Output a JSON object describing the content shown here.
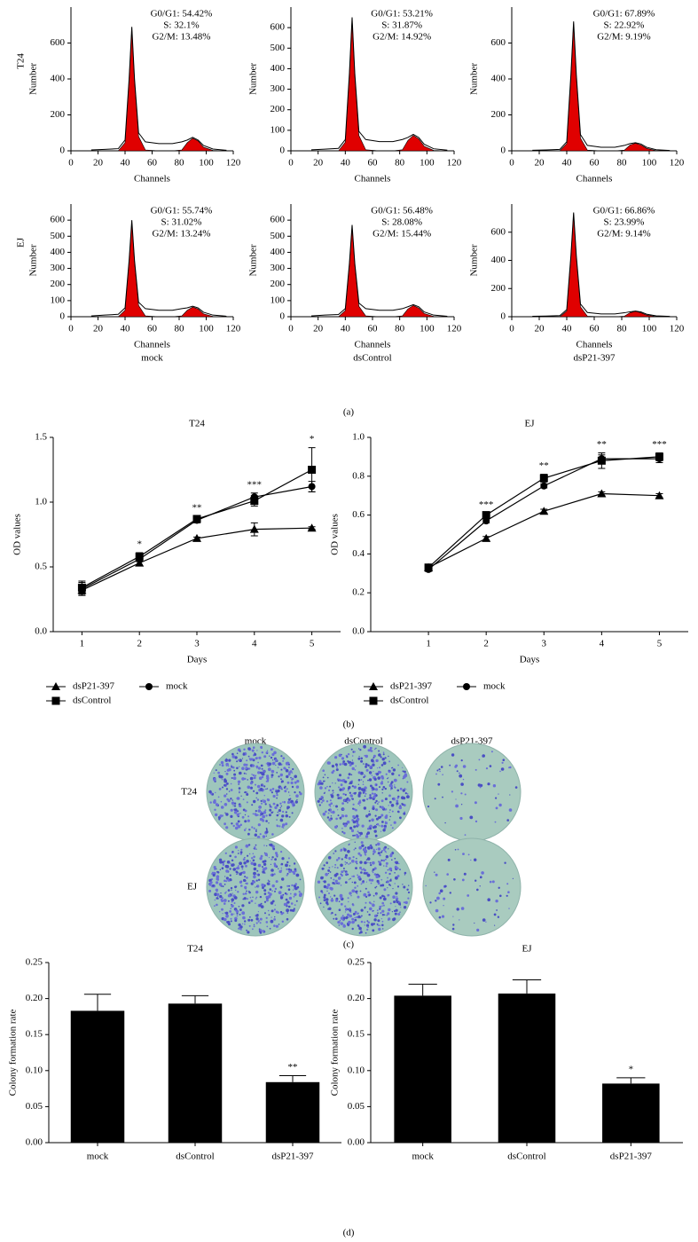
{
  "panel_labels": [
    "(a)",
    "(b)",
    "(c)",
    "(d)"
  ],
  "colony_plates": {
    "columns": [
      "mock",
      "dsControl",
      "dsP21-397"
    ],
    "rows": [
      "T24",
      "EJ"
    ]
  },
  "chart_data": [
    {
      "type": "area",
      "row_label": "T24",
      "y_label": "Number",
      "x_label": "Channels",
      "annotations": [
        "G0/G1: 54.42%",
        "S: 32.1%",
        "G2/M: 13.48%"
      ],
      "x": [
        15,
        25,
        35,
        40,
        43,
        45,
        47,
        50,
        55,
        65,
        75,
        82,
        86,
        90,
        94,
        98,
        105,
        115
      ],
      "series": [
        {
          "color": "#000000",
          "values": [
            5,
            8,
            12,
            60,
            400,
            690,
            400,
            100,
            50,
            40,
            40,
            50,
            60,
            75,
            60,
            30,
            10,
            3
          ]
        },
        {
          "color": "#e00000",
          "values": [
            0,
            0,
            0,
            45,
            390,
            680,
            390,
            80,
            5,
            0,
            0,
            5,
            45,
            70,
            55,
            20,
            2,
            0
          ]
        }
      ],
      "xlim": [
        0,
        120
      ],
      "xticks": [
        0,
        20,
        40,
        60,
        80,
        100,
        120
      ],
      "ylim": [
        0,
        800
      ],
      "yticks": [
        0,
        200,
        400,
        600
      ]
    },
    {
      "type": "area",
      "y_label": "Number",
      "x_label": "Channels",
      "annotations": [
        "G0/G1: 53.21%",
        "S: 31.87%",
        "G2/M: 14.92%"
      ],
      "x": [
        15,
        25,
        35,
        40,
        43,
        45,
        47,
        50,
        55,
        65,
        75,
        82,
        86,
        90,
        94,
        98,
        105,
        115
      ],
      "series": [
        {
          "color": "#000000",
          "values": [
            5,
            8,
            12,
            55,
            375,
            650,
            375,
            95,
            55,
            45,
            45,
            55,
            65,
            80,
            65,
            32,
            10,
            3
          ]
        },
        {
          "color": "#e00000",
          "values": [
            0,
            0,
            0,
            42,
            365,
            640,
            365,
            75,
            5,
            0,
            0,
            5,
            50,
            75,
            58,
            22,
            2,
            0
          ]
        }
      ],
      "xlim": [
        0,
        120
      ],
      "xticks": [
        0,
        20,
        40,
        60,
        80,
        100,
        120
      ],
      "ylim": [
        0,
        700
      ],
      "yticks": [
        0,
        100,
        200,
        300,
        400,
        500,
        600
      ]
    },
    {
      "type": "area",
      "y_label": "Number",
      "x_label": "Channels",
      "annotations": [
        "G0/G1: 67.89%",
        "S: 22.92%",
        "G2/M: 9.19%"
      ],
      "x": [
        15,
        25,
        35,
        40,
        43,
        45,
        47,
        50,
        55,
        65,
        75,
        82,
        86,
        90,
        94,
        98,
        105,
        115
      ],
      "series": [
        {
          "color": "#000000",
          "values": [
            3,
            5,
            8,
            50,
            420,
            720,
            420,
            90,
            30,
            20,
            20,
            30,
            40,
            45,
            38,
            20,
            6,
            2
          ]
        },
        {
          "color": "#e00000",
          "values": [
            0,
            0,
            0,
            40,
            410,
            710,
            410,
            70,
            4,
            0,
            0,
            4,
            32,
            42,
            32,
            14,
            1,
            0
          ]
        }
      ],
      "xlim": [
        0,
        120
      ],
      "xticks": [
        0,
        20,
        40,
        60,
        80,
        100,
        120
      ],
      "ylim": [
        0,
        800
      ],
      "yticks": [
        0,
        200,
        400,
        600
      ]
    },
    {
      "type": "area",
      "row_label": "EJ",
      "y_label": "Number",
      "x_label": "Channels",
      "caption": "mock",
      "annotations": [
        "G0/G1: 55.74%",
        "S: 31.02%",
        "G2/M: 13.24%"
      ],
      "x": [
        15,
        25,
        35,
        40,
        43,
        45,
        47,
        50,
        55,
        65,
        75,
        82,
        86,
        90,
        94,
        98,
        105,
        115
      ],
      "series": [
        {
          "color": "#000000",
          "values": [
            5,
            10,
            15,
            55,
            350,
            600,
            350,
            90,
            50,
            40,
            40,
            50,
            55,
            65,
            55,
            28,
            10,
            3
          ]
        },
        {
          "color": "#e00000",
          "values": [
            0,
            0,
            0,
            40,
            340,
            590,
            340,
            70,
            5,
            0,
            0,
            5,
            40,
            60,
            48,
            18,
            2,
            0
          ]
        }
      ],
      "xlim": [
        0,
        120
      ],
      "xticks": [
        0,
        20,
        40,
        60,
        80,
        100,
        120
      ],
      "ylim": [
        0,
        700
      ],
      "yticks": [
        0,
        100,
        200,
        300,
        400,
        500,
        600
      ]
    },
    {
      "type": "area",
      "y_label": "Number",
      "x_label": "Channels",
      "caption": "dsControl",
      "annotations": [
        "G0/G1: 56.48%",
        "S: 28.08%",
        "G2/M: 15.44%"
      ],
      "x": [
        15,
        25,
        35,
        40,
        43,
        45,
        47,
        50,
        55,
        65,
        75,
        82,
        86,
        90,
        94,
        98,
        105,
        115
      ],
      "series": [
        {
          "color": "#000000",
          "values": [
            5,
            10,
            14,
            50,
            330,
            570,
            330,
            85,
            50,
            40,
            40,
            50,
            62,
            75,
            62,
            30,
            10,
            3
          ]
        },
        {
          "color": "#e00000",
          "values": [
            0,
            0,
            0,
            38,
            320,
            560,
            320,
            65,
            5,
            0,
            0,
            5,
            48,
            70,
            54,
            20,
            2,
            0
          ]
        }
      ],
      "xlim": [
        0,
        120
      ],
      "xticks": [
        0,
        20,
        40,
        60,
        80,
        100,
        120
      ],
      "ylim": [
        0,
        700
      ],
      "yticks": [
        0,
        100,
        200,
        300,
        400,
        500,
        600
      ]
    },
    {
      "type": "area",
      "y_label": "Number",
      "x_label": "Channels",
      "caption": "dsP21-397",
      "annotations": [
        "G0/G1: 66.86%",
        "S: 23.99%",
        "G2/M: 9.14%"
      ],
      "x": [
        15,
        25,
        35,
        40,
        43,
        45,
        47,
        50,
        55,
        65,
        75,
        82,
        86,
        90,
        94,
        98,
        105,
        115
      ],
      "series": [
        {
          "color": "#000000",
          "values": [
            3,
            5,
            8,
            50,
            430,
            740,
            430,
            90,
            30,
            20,
            20,
            28,
            35,
            40,
            34,
            18,
            6,
            2
          ]
        },
        {
          "color": "#e00000",
          "values": [
            0,
            0,
            0,
            40,
            420,
            730,
            420,
            70,
            4,
            0,
            0,
            4,
            28,
            38,
            28,
            12,
            1,
            0
          ]
        }
      ],
      "xlim": [
        0,
        120
      ],
      "xticks": [
        0,
        20,
        40,
        60,
        80,
        100,
        120
      ],
      "ylim": [
        0,
        800
      ],
      "yticks": [
        0,
        200,
        400,
        600
      ]
    },
    {
      "type": "line",
      "title": "T24",
      "x_label": "Days",
      "y_label": "OD values",
      "x": [
        1,
        2,
        3,
        4,
        5
      ],
      "series": [
        {
          "name": "dsP21-397",
          "marker": "triangle",
          "color": "#000000",
          "values": [
            0.32,
            0.53,
            0.72,
            0.79,
            0.8
          ],
          "errors": [
            0.04,
            0.02,
            0.01,
            0.05,
            0.01
          ]
        },
        {
          "name": "dsControl",
          "marker": "square",
          "color": "#000000",
          "values": [
            0.34,
            0.58,
            0.87,
            1.01,
            1.25
          ],
          "errors": [
            0.05,
            0.03,
            0.02,
            0.04,
            0.17
          ]
        },
        {
          "name": "mock",
          "marker": "circle",
          "color": "#000000",
          "values": [
            0.33,
            0.56,
            0.86,
            1.04,
            1.12
          ],
          "errors": [
            0.05,
            0.02,
            0.02,
            0.03,
            0.04
          ]
        }
      ],
      "annotations": [
        null,
        "*",
        "**",
        "***",
        "*"
      ],
      "xlim": [
        0.5,
        5.5
      ],
      "xticks": [
        1,
        2,
        3,
        4,
        5
      ],
      "ylim": [
        0,
        1.5
      ],
      "yticks": [
        {
          "value": 0,
          "label": "0.0"
        },
        {
          "value": 0.5,
          "label": "0.5"
        },
        {
          "value": 1,
          "label": "1.0"
        },
        {
          "value": 1.5,
          "label": "1.5"
        }
      ]
    },
    {
      "type": "line",
      "title": "EJ",
      "x_label": "Days",
      "y_label": "OD values",
      "x": [
        1,
        2,
        3,
        4,
        5
      ],
      "series": [
        {
          "name": "dsP21-397",
          "marker": "triangle",
          "color": "#000000",
          "values": [
            0.33,
            0.48,
            0.62,
            0.71,
            0.7
          ],
          "errors": [
            0.01,
            0.01,
            0.01,
            0.01,
            0.01
          ]
        },
        {
          "name": "dsControl",
          "marker": "square",
          "color": "#000000",
          "values": [
            0.33,
            0.6,
            0.79,
            0.88,
            0.9
          ],
          "errors": [
            0.01,
            0.01,
            0.02,
            0.04,
            0.02
          ]
        },
        {
          "name": "mock",
          "marker": "circle",
          "color": "#000000",
          "values": [
            0.32,
            0.57,
            0.75,
            0.89,
            0.89
          ],
          "errors": [
            0.01,
            0.01,
            0.01,
            0.02,
            0.02
          ]
        }
      ],
      "annotations": [
        null,
        "***",
        "**",
        "**",
        "***"
      ],
      "xlim": [
        0,
        5.5
      ],
      "xticks": [
        1,
        2,
        3,
        4,
        5
      ],
      "ylim": [
        0,
        1
      ],
      "yticks": [
        {
          "value": 0,
          "label": "0.0"
        },
        {
          "value": 0.2,
          "label": "0.2"
        },
        {
          "value": 0.4,
          "label": "0.4"
        },
        {
          "value": 0.6,
          "label": "0.6"
        },
        {
          "value": 0.8,
          "label": "0.8"
        },
        {
          "value": 1,
          "label": "1.0"
        }
      ]
    },
    {
      "type": "bar",
      "title": "T24",
      "y_label": "Colony formation rate",
      "color": "#000000",
      "categories": [
        "mock",
        "dsControl",
        "dsP21-397"
      ],
      "values": [
        0.183,
        0.193,
        0.084
      ],
      "errors": [
        0.023,
        0.011,
        0.009
      ],
      "annotations": [
        null,
        null,
        "**"
      ],
      "ylim": [
        0,
        0.25
      ],
      "yticks": [
        {
          "value": 0,
          "label": "0.00"
        },
        {
          "value": 0.05,
          "label": "0.05"
        },
        {
          "value": 0.1,
          "label": "0.10"
        },
        {
          "value": 0.15,
          "label": "0.15"
        },
        {
          "value": 0.2,
          "label": "0.20"
        },
        {
          "value": 0.25,
          "label": "0.25"
        }
      ]
    },
    {
      "type": "bar",
      "title": "EJ",
      "y_label": "Colony formation rate",
      "color": "#000000",
      "categories": [
        "mock",
        "dsControl",
        "dsP21-397"
      ],
      "values": [
        0.204,
        0.207,
        0.082
      ],
      "errors": [
        0.016,
        0.019,
        0.008
      ],
      "annotations": [
        null,
        null,
        "*"
      ],
      "ylim": [
        0,
        0.25
      ],
      "yticks": [
        {
          "value": 0,
          "label": "0.00"
        },
        {
          "value": 0.05,
          "label": "0.05"
        },
        {
          "value": 0.1,
          "label": "0.10"
        },
        {
          "value": 0.15,
          "label": "0.15"
        },
        {
          "value": 0.2,
          "label": "0.20"
        },
        {
          "value": 0.25,
          "label": "0.25"
        }
      ]
    }
  ]
}
